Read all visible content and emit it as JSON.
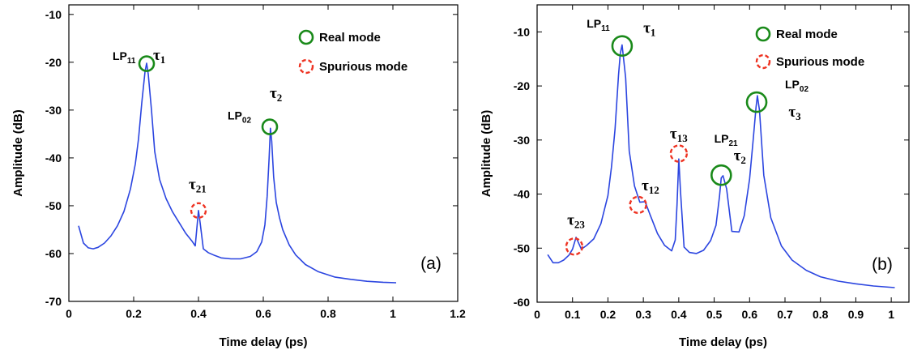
{
  "colors": {
    "line": "#2b45e0",
    "real": "#1a8a1a",
    "spurious": "#ee3322",
    "axis": "#000000"
  },
  "chart_data": [
    {
      "type": "line",
      "panel_label": "(a)",
      "xlabel": "Time delay (ps)",
      "ylabel": "Amplitude (dB)",
      "xlim": [
        0,
        1.2
      ],
      "ylim": [
        -70,
        -8
      ],
      "xticks": [
        0,
        0.2,
        0.4,
        0.6,
        0.8,
        1,
        1.2
      ],
      "xtick_labels": [
        "0",
        "0.2",
        "0.4",
        "0.6",
        "0.8",
        "1",
        "1.2"
      ],
      "yticks": [
        -70,
        -60,
        -50,
        -40,
        -30,
        -20,
        -10
      ],
      "ytick_labels": [
        "-70",
        "-60",
        "-50",
        "-40",
        "-30",
        "-20",
        "-10"
      ],
      "series": [
        {
          "x": [
            0.03,
            0.045,
            0.06,
            0.075,
            0.09,
            0.11,
            0.13,
            0.15,
            0.17,
            0.19,
            0.205,
            0.215,
            0.225,
            0.235,
            0.24,
            0.245,
            0.255,
            0.265,
            0.28,
            0.3,
            0.32,
            0.34,
            0.36,
            0.38,
            0.39,
            0.4,
            0.405,
            0.415,
            0.43,
            0.45,
            0.47,
            0.5,
            0.53,
            0.56,
            0.58,
            0.595,
            0.605,
            0.612,
            0.618,
            0.622,
            0.626,
            0.632,
            0.64,
            0.65,
            0.66,
            0.68,
            0.7,
            0.73,
            0.77,
            0.82,
            0.87,
            0.92,
            0.97,
            1.01
          ],
          "y": [
            -54.2,
            -57.8,
            -58.8,
            -59,
            -58.7,
            -57.8,
            -56.3,
            -54.2,
            -51.2,
            -46.5,
            -41.3,
            -36,
            -28.5,
            -22,
            -20.2,
            -22.5,
            -30,
            -38.7,
            -44.5,
            -48.5,
            -51.3,
            -53.5,
            -55.7,
            -57.4,
            -58.4,
            -51,
            -53.5,
            -59,
            -59.8,
            -60.4,
            -60.9,
            -61.1,
            -61.1,
            -60.6,
            -59.6,
            -57.6,
            -54,
            -48,
            -40,
            -33.8,
            -36.5,
            -44,
            -49.3,
            -52.5,
            -55,
            -58.2,
            -60.3,
            -62.3,
            -63.8,
            -64.9,
            -65.4,
            -65.8,
            -66,
            -66.1
          ]
        }
      ],
      "annotations": [
        {
          "label": "LP",
          "sub": "11",
          "x": 0.135,
          "y": -19.5
        },
        {
          "label": "τ",
          "sub": "1",
          "x": 0.26,
          "y": -19.5
        },
        {
          "label": "LP",
          "sub": "02",
          "x": 0.49,
          "y": -32
        },
        {
          "label": "τ",
          "sub": "2",
          "x": 0.62,
          "y": -27.5
        },
        {
          "label": "τ",
          "sub": "21",
          "x": 0.37,
          "y": -46.5
        }
      ],
      "markers": [
        {
          "kind": "real",
          "x": 0.24,
          "y": -20.3
        },
        {
          "kind": "real",
          "x": 0.62,
          "y": -33.5
        },
        {
          "kind": "spurious",
          "x": 0.4,
          "y": -51
        }
      ],
      "legend": {
        "placement": "top-right",
        "real_label": "Real mode",
        "spurious_label": "Spurious mode"
      }
    },
    {
      "type": "line",
      "panel_label": "(b)",
      "xlabel": "Time delay (ps)",
      "ylabel": "Amplitude (dB)",
      "xlim": [
        0,
        1.05
      ],
      "ylim": [
        -60,
        -5
      ],
      "xticks": [
        0,
        0.1,
        0.2,
        0.3,
        0.4,
        0.5,
        0.6,
        0.7,
        0.8,
        0.9,
        1
      ],
      "xtick_labels": [
        "0",
        "0.1",
        "0.2",
        "0.3",
        "0.4",
        "0.5",
        "0.6",
        "0.7",
        "0.8",
        "0.9",
        "1"
      ],
      "yticks": [
        -60,
        -50,
        -40,
        -30,
        -20,
        -10
      ],
      "ytick_labels": [
        "-60",
        "-50",
        "-40",
        "-30",
        "-20",
        "-10"
      ],
      "series": [
        {
          "x": [
            0.03,
            0.045,
            0.06,
            0.075,
            0.09,
            0.1,
            0.11,
            0.125,
            0.14,
            0.16,
            0.18,
            0.2,
            0.21,
            0.22,
            0.23,
            0.235,
            0.24,
            0.25,
            0.26,
            0.275,
            0.29,
            0.305,
            0.32,
            0.34,
            0.36,
            0.38,
            0.39,
            0.395,
            0.4,
            0.405,
            0.415,
            0.43,
            0.45,
            0.47,
            0.49,
            0.505,
            0.515,
            0.52,
            0.525,
            0.535,
            0.55,
            0.57,
            0.585,
            0.6,
            0.61,
            0.618,
            0.622,
            0.628,
            0.64,
            0.66,
            0.69,
            0.72,
            0.76,
            0.8,
            0.85,
            0.9,
            0.95,
            1.01
          ],
          "y": [
            -51.2,
            -52.7,
            -52.7,
            -52.2,
            -51.3,
            -50.2,
            -48,
            -50.2,
            -49.5,
            -48.3,
            -45.5,
            -40.3,
            -35,
            -28,
            -18,
            -14,
            -12.4,
            -18.5,
            -32,
            -38.5,
            -41.5,
            -41.4,
            -44,
            -47.3,
            -49.5,
            -50.5,
            -48.5,
            -42,
            -33.5,
            -39.5,
            -49.8,
            -50.8,
            -51,
            -50.4,
            -48.6,
            -45.8,
            -40.5,
            -37,
            -36.6,
            -39,
            -46.9,
            -47,
            -44,
            -37.2,
            -30,
            -24,
            -21.8,
            -24.5,
            -36.5,
            -44.4,
            -49.6,
            -52.2,
            -54.1,
            -55.3,
            -56.1,
            -56.6,
            -57,
            -57.3
          ]
        }
      ],
      "annotations": [
        {
          "label": "LP",
          "sub": "11",
          "x": 0.14,
          "y": -9.2
        },
        {
          "label": "τ",
          "sub": "1",
          "x": 0.3,
          "y": -10.2
        },
        {
          "label": "τ",
          "sub": "13",
          "x": 0.375,
          "y": -29.7
        },
        {
          "label": "LP",
          "sub": "21",
          "x": 0.5,
          "y": -30.5
        },
        {
          "label": "τ",
          "sub": "2",
          "x": 0.555,
          "y": -33.8
        },
        {
          "label": "LP",
          "sub": "02",
          "x": 0.7,
          "y": -20.4
        },
        {
          "label": "τ",
          "sub": "3",
          "x": 0.71,
          "y": -25.7
        },
        {
          "label": "τ",
          "sub": "12",
          "x": 0.295,
          "y": -39.3
        },
        {
          "label": "τ",
          "sub": "23",
          "x": 0.085,
          "y": -45.7
        }
      ],
      "markers": [
        {
          "kind": "real",
          "x": 0.24,
          "y": -12.6
        },
        {
          "kind": "real",
          "x": 0.52,
          "y": -36.5
        },
        {
          "kind": "real",
          "x": 0.62,
          "y": -23
        },
        {
          "kind": "spurious",
          "x": 0.4,
          "y": -32.5
        },
        {
          "kind": "spurious",
          "x": 0.285,
          "y": -42
        },
        {
          "kind": "spurious",
          "x": 0.105,
          "y": -49.7
        }
      ],
      "legend": {
        "placement": "top-right",
        "real_label": "Real mode",
        "spurious_label": "Spurious mode"
      }
    }
  ]
}
